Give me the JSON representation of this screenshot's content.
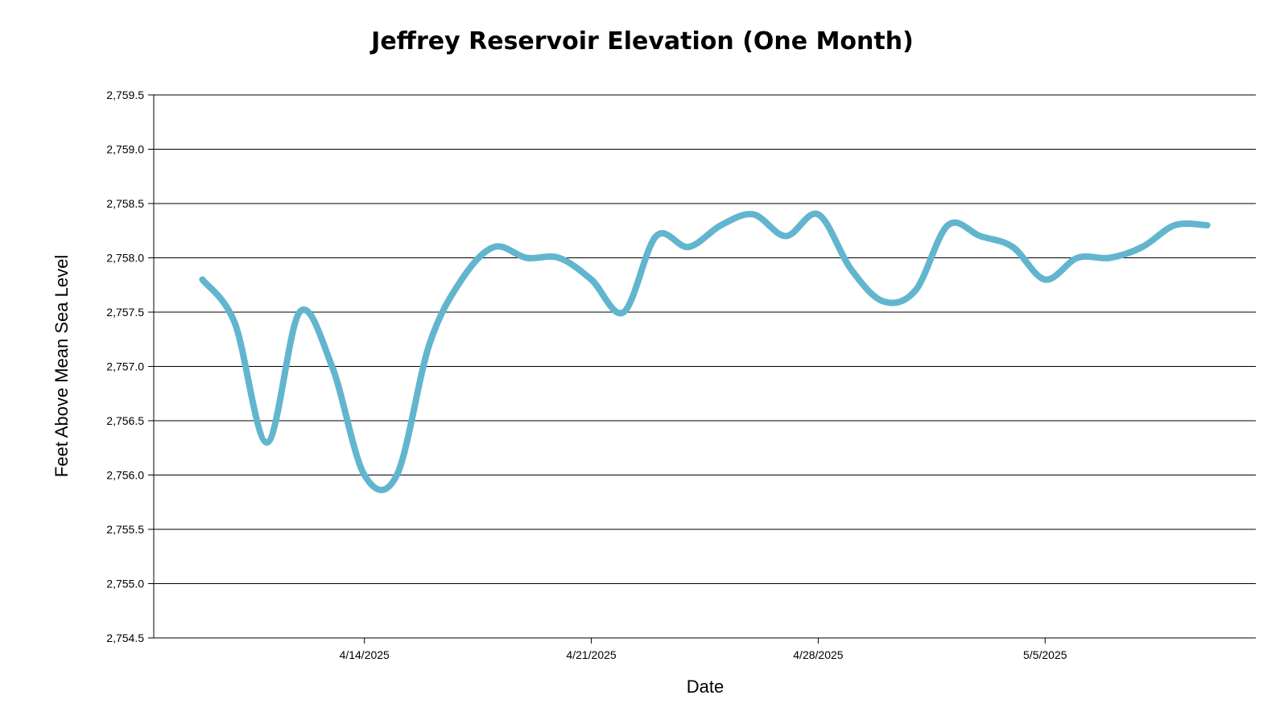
{
  "chart_data": {
    "type": "line",
    "title": "Jeffrey Reservoir Elevation (One Month)",
    "xlabel": "Date",
    "ylabel": "Feet Above Mean Sea Level",
    "ylim": [
      2754.5,
      2759.5
    ],
    "y_ticks": [
      "2,754.5",
      "2,755.0",
      "2,755.5",
      "2,756.0",
      "2,756.5",
      "2,757.0",
      "2,757.5",
      "2,758.0",
      "2,758.5",
      "2,759.0",
      "2,759.5"
    ],
    "x_ticks": [
      "4/14/2025",
      "4/21/2025",
      "4/28/2025",
      "5/5/2025"
    ],
    "grid": true,
    "legend": "none",
    "series_color": "#62B5CE",
    "x": [
      "4/9/2025",
      "4/10/2025",
      "4/11/2025",
      "4/12/2025",
      "4/13/2025",
      "4/14/2025",
      "4/15/2025",
      "4/16/2025",
      "4/17/2025",
      "4/18/2025",
      "4/19/2025",
      "4/20/2025",
      "4/21/2025",
      "4/22/2025",
      "4/23/2025",
      "4/24/2025",
      "4/25/2025",
      "4/26/2025",
      "4/27/2025",
      "4/28/2025",
      "4/29/2025",
      "4/30/2025",
      "5/1/2025",
      "5/2/2025",
      "5/3/2025",
      "5/4/2025",
      "5/5/2025",
      "5/6/2025",
      "5/7/2025",
      "5/8/2025",
      "5/9/2025",
      "5/10/2025"
    ],
    "values": [
      2757.8,
      2757.4,
      2756.3,
      2757.5,
      2757.0,
      2756.0,
      2756.0,
      2757.2,
      2757.8,
      2758.1,
      2758.0,
      2758.0,
      2757.8,
      2757.5,
      2758.2,
      2758.1,
      2758.3,
      2758.4,
      2758.2,
      2758.4,
      2757.9,
      2757.6,
      2757.7,
      2758.3,
      2758.2,
      2758.1,
      2757.8,
      2758.0,
      2758.0,
      2758.1,
      2758.3,
      2758.3
    ]
  }
}
